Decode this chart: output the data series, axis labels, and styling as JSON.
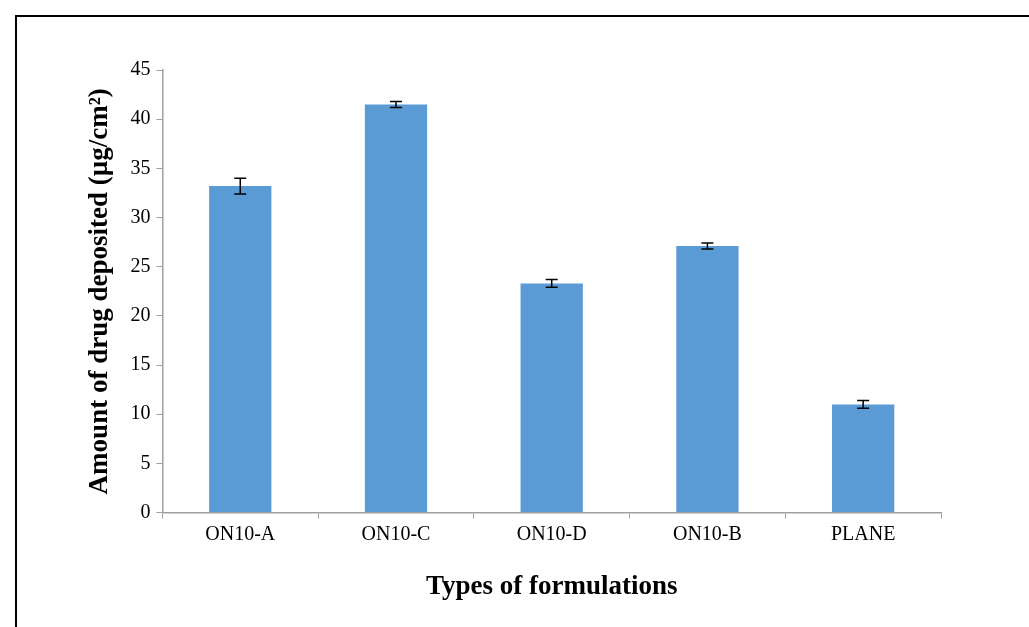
{
  "chart_data": {
    "type": "bar",
    "xlabel": "Types of formulations",
    "ylabel": "Amount of drug deposited (µg/cm²)",
    "categories": [
      "ON10-A",
      "ON10-C",
      "ON10-D",
      "ON10-B",
      "PLANE"
    ],
    "values": [
      33.2,
      41.5,
      23.3,
      27.1,
      11.0
    ],
    "errors": [
      0.8,
      0.3,
      0.4,
      0.3,
      0.4
    ],
    "color": "#5b9bd5",
    "ylim": [
      0,
      45
    ],
    "yticks": [
      0,
      5,
      10,
      15,
      20,
      25,
      30,
      35,
      40,
      45
    ],
    "grid": false,
    "legend": false
  }
}
